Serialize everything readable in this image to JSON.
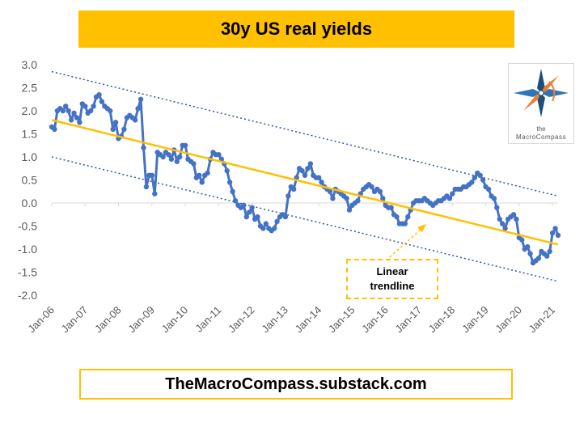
{
  "title": "30y US real yields",
  "footer": "TheMacroCompass.substack.com",
  "callout": "Linear\ntrendline",
  "logo": {
    "word_top": "the",
    "word_bottom": "MacroCompass",
    "icon": "compass-rose-icon"
  },
  "colors": {
    "series": "#4472C4",
    "trend": "#FFC000",
    "channel": "#2F5597",
    "title_bg": "#FFC000"
  },
  "chart_data": {
    "type": "line",
    "ylim": [
      -2.0,
      3.0
    ],
    "yticks": [
      "3.0",
      "2.5",
      "2.0",
      "1.5",
      "1.0",
      "0.5",
      "0.0",
      "-0.5",
      "-1.0",
      "-1.5",
      "-2.0"
    ],
    "xticks": [
      "Jan-06",
      "Jan-07",
      "Jan-08",
      "Jan-09",
      "Jan-10",
      "Jan-11",
      "Jan-12",
      "Jan-13",
      "Jan-14",
      "Jan-15",
      "Jan-16",
      "Jan-17",
      "Jan-18",
      "Jan-19",
      "Jan-20",
      "Jan-21"
    ],
    "x_range": [
      "2006-01",
      "2021-03"
    ],
    "grid": false,
    "series": [
      {
        "style": "line-with-markers",
        "points": [
          [
            "2006-01",
            1.65
          ],
          [
            "2006-02",
            1.6
          ],
          [
            "2006-03",
            2.0
          ],
          [
            "2006-04",
            2.05
          ],
          [
            "2006-05",
            2.0
          ],
          [
            "2006-06",
            2.1
          ],
          [
            "2006-07",
            2.0
          ],
          [
            "2006-08",
            1.8
          ],
          [
            "2006-09",
            1.95
          ],
          [
            "2006-10",
            1.85
          ],
          [
            "2006-11",
            1.75
          ],
          [
            "2006-12",
            2.15
          ],
          [
            "2007-01",
            2.1
          ],
          [
            "2007-02",
            1.95
          ],
          [
            "2007-03",
            2.0
          ],
          [
            "2007-04",
            2.1
          ],
          [
            "2007-05",
            2.3
          ],
          [
            "2007-06",
            2.35
          ],
          [
            "2007-07",
            2.2
          ],
          [
            "2007-08",
            2.1
          ],
          [
            "2007-09",
            2.05
          ],
          [
            "2007-10",
            2.0
          ],
          [
            "2007-11",
            1.6
          ],
          [
            "2007-12",
            1.75
          ],
          [
            "2008-01",
            1.4
          ],
          [
            "2008-02",
            1.45
          ],
          [
            "2008-03",
            1.6
          ],
          [
            "2008-04",
            1.85
          ],
          [
            "2008-05",
            1.9
          ],
          [
            "2008-06",
            1.85
          ],
          [
            "2008-07",
            1.8
          ],
          [
            "2008-08",
            2.05
          ],
          [
            "2008-09",
            2.25
          ],
          [
            "2008-10",
            1.2
          ],
          [
            "2008-11",
            0.35
          ],
          [
            "2008-12",
            0.6
          ],
          [
            "2009-01",
            0.6
          ],
          [
            "2009-02",
            0.2
          ],
          [
            "2009-03",
            1.1
          ],
          [
            "2009-04",
            1.05
          ],
          [
            "2009-05",
            1.0
          ],
          [
            "2009-06",
            1.1
          ],
          [
            "2009-07",
            1.05
          ],
          [
            "2009-08",
            0.95
          ],
          [
            "2009-09",
            1.15
          ],
          [
            "2009-10",
            0.9
          ],
          [
            "2009-11",
            1.0
          ],
          [
            "2009-12",
            1.25
          ],
          [
            "2010-01",
            1.25
          ],
          [
            "2010-02",
            0.95
          ],
          [
            "2010-03",
            0.9
          ],
          [
            "2010-04",
            0.85
          ],
          [
            "2010-05",
            0.55
          ],
          [
            "2010-06",
            0.6
          ],
          [
            "2010-07",
            0.45
          ],
          [
            "2010-08",
            0.6
          ],
          [
            "2010-09",
            0.65
          ],
          [
            "2010-10",
            0.95
          ],
          [
            "2010-11",
            1.1
          ],
          [
            "2010-12",
            1.05
          ],
          [
            "2011-01",
            1.05
          ],
          [
            "2011-02",
            0.95
          ],
          [
            "2011-03",
            0.85
          ],
          [
            "2011-04",
            0.7
          ],
          [
            "2011-05",
            0.45
          ],
          [
            "2011-06",
            0.25
          ],
          [
            "2011-07",
            0.05
          ],
          [
            "2011-08",
            -0.05
          ],
          [
            "2011-09",
            -0.1
          ],
          [
            "2011-10",
            -0.05
          ],
          [
            "2011-11",
            -0.3
          ],
          [
            "2011-12",
            -0.2
          ],
          [
            "2012-01",
            -0.1
          ],
          [
            "2012-02",
            -0.35
          ],
          [
            "2012-03",
            -0.3
          ],
          [
            "2012-04",
            -0.5
          ],
          [
            "2012-05",
            -0.55
          ],
          [
            "2012-06",
            -0.45
          ],
          [
            "2012-07",
            -0.55
          ],
          [
            "2012-08",
            -0.6
          ],
          [
            "2012-09",
            -0.55
          ],
          [
            "2012-10",
            -0.4
          ],
          [
            "2012-11",
            -0.3
          ],
          [
            "2012-12",
            -0.25
          ],
          [
            "2013-01",
            -0.3
          ],
          [
            "2013-02",
            0.15
          ],
          [
            "2013-03",
            0.35
          ],
          [
            "2013-04",
            0.3
          ],
          [
            "2013-05",
            0.55
          ],
          [
            "2013-06",
            0.75
          ],
          [
            "2013-07",
            0.7
          ],
          [
            "2013-08",
            0.6
          ],
          [
            "2013-09",
            0.75
          ],
          [
            "2013-10",
            0.85
          ],
          [
            "2013-11",
            0.6
          ],
          [
            "2013-12",
            0.55
          ],
          [
            "2014-01",
            0.55
          ],
          [
            "2014-02",
            0.45
          ],
          [
            "2014-03",
            0.35
          ],
          [
            "2014-04",
            0.3
          ],
          [
            "2014-05",
            0.25
          ],
          [
            "2014-06",
            0.1
          ],
          [
            "2014-07",
            0.3
          ],
          [
            "2014-08",
            0.25
          ],
          [
            "2014-09",
            0.2
          ],
          [
            "2014-10",
            0.15
          ],
          [
            "2014-11",
            0.1
          ],
          [
            "2014-12",
            -0.15
          ],
          [
            "2015-01",
            -0.05
          ],
          [
            "2015-02",
            0.0
          ],
          [
            "2015-03",
            0.05
          ],
          [
            "2015-04",
            0.2
          ],
          [
            "2015-05",
            0.3
          ],
          [
            "2015-06",
            0.35
          ],
          [
            "2015-07",
            0.4
          ],
          [
            "2015-08",
            0.35
          ],
          [
            "2015-09",
            0.25
          ],
          [
            "2015-10",
            0.3
          ],
          [
            "2015-11",
            0.25
          ],
          [
            "2015-12",
            0.1
          ],
          [
            "2016-01",
            -0.05
          ],
          [
            "2016-02",
            -0.1
          ],
          [
            "2016-03",
            -0.1
          ],
          [
            "2016-04",
            -0.25
          ],
          [
            "2016-05",
            -0.3
          ],
          [
            "2016-06",
            -0.45
          ],
          [
            "2016-07",
            -0.45
          ],
          [
            "2016-08",
            -0.45
          ],
          [
            "2016-09",
            -0.3
          ],
          [
            "2016-10",
            -0.15
          ],
          [
            "2016-11",
            0.0
          ],
          [
            "2016-12",
            0.05
          ],
          [
            "2017-01",
            0.05
          ],
          [
            "2017-02",
            0.05
          ],
          [
            "2017-03",
            0.1
          ],
          [
            "2017-04",
            0.05
          ],
          [
            "2017-05",
            0.0
          ],
          [
            "2017-06",
            -0.05
          ],
          [
            "2017-07",
            0.0
          ],
          [
            "2017-08",
            0.05
          ],
          [
            "2017-09",
            0.05
          ],
          [
            "2017-10",
            0.1
          ],
          [
            "2017-11",
            0.15
          ],
          [
            "2017-12",
            0.1
          ],
          [
            "2018-01",
            0.2
          ],
          [
            "2018-02",
            0.3
          ],
          [
            "2018-03",
            0.3
          ],
          [
            "2018-04",
            0.3
          ],
          [
            "2018-05",
            0.35
          ],
          [
            "2018-06",
            0.35
          ],
          [
            "2018-07",
            0.4
          ],
          [
            "2018-08",
            0.45
          ],
          [
            "2018-09",
            0.55
          ],
          [
            "2018-10",
            0.65
          ],
          [
            "2018-11",
            0.6
          ],
          [
            "2018-12",
            0.5
          ],
          [
            "2019-01",
            0.35
          ],
          [
            "2019-02",
            0.3
          ],
          [
            "2019-03",
            0.15
          ],
          [
            "2019-04",
            0.1
          ],
          [
            "2019-05",
            -0.1
          ],
          [
            "2019-06",
            -0.35
          ],
          [
            "2019-07",
            -0.45
          ],
          [
            "2019-08",
            -0.55
          ],
          [
            "2019-09",
            -0.35
          ],
          [
            "2019-10",
            -0.3
          ],
          [
            "2019-11",
            -0.25
          ],
          [
            "2019-12",
            -0.35
          ],
          [
            "2020-01",
            -0.75
          ],
          [
            "2020-02",
            -0.8
          ],
          [
            "2020-03",
            -1.0
          ],
          [
            "2020-04",
            -0.95
          ],
          [
            "2020-05",
            -1.1
          ],
          [
            "2020-06",
            -1.3
          ],
          [
            "2020-07",
            -1.25
          ],
          [
            "2020-08",
            -1.2
          ],
          [
            "2020-09",
            -1.05
          ],
          [
            "2020-10",
            -1.1
          ],
          [
            "2020-11",
            -1.15
          ],
          [
            "2020-12",
            -1.05
          ],
          [
            "2021-01",
            -0.65
          ],
          [
            "2021-02",
            -0.55
          ],
          [
            "2021-03",
            -0.7
          ]
        ]
      }
    ],
    "trendline": {
      "start": [
        "2006-01",
        1.8
      ],
      "end": [
        "2021-03",
        -0.9
      ]
    },
    "channel_upper": {
      "start": [
        "2006-01",
        2.85
      ],
      "end": [
        "2021-03",
        0.15
      ]
    },
    "channel_lower": {
      "start": [
        "2006-01",
        1.0
      ],
      "end": [
        "2021-03",
        -1.7
      ]
    }
  }
}
